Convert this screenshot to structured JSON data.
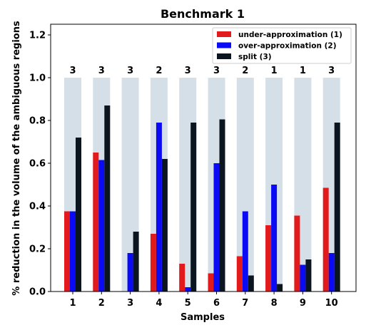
{
  "chart_data": {
    "type": "bar",
    "title": "Benchmark 1",
    "xlabel": "Samples",
    "ylabel": "% reduction in the volume of the ambiguous regions",
    "ylim": [
      0,
      1.25
    ],
    "yticks": [
      "0.0",
      "0.2",
      "0.4",
      "0.6",
      "0.8",
      "1.0",
      "1.2"
    ],
    "categories": [
      "1",
      "2",
      "3",
      "4",
      "5",
      "6",
      "7",
      "8",
      "9",
      "10"
    ],
    "background_value": 1.0,
    "background_color": "#d5dfe8",
    "series": [
      {
        "name": "under-approximation (1)",
        "color": "#e31a1c",
        "values": [
          0.375,
          0.65,
          0.0,
          0.27,
          0.13,
          0.085,
          0.165,
          0.31,
          0.355,
          0.485
        ]
      },
      {
        "name": "over-approximation (2)",
        "color": "#0a0af5",
        "values": [
          0.375,
          0.615,
          0.18,
          0.79,
          0.02,
          0.6,
          0.375,
          0.5,
          0.125,
          0.18
        ]
      },
      {
        "name": "split (3)",
        "color": "#0b1520",
        "values": [
          0.72,
          0.87,
          0.28,
          0.62,
          0.79,
          0.805,
          0.075,
          0.035,
          0.15,
          0.79
        ]
      }
    ],
    "count_labels": [
      "3",
      "3",
      "3",
      "2",
      "3",
      "3",
      "2",
      "1",
      "1",
      "3"
    ],
    "grid": false,
    "legend_position": "top-right"
  }
}
